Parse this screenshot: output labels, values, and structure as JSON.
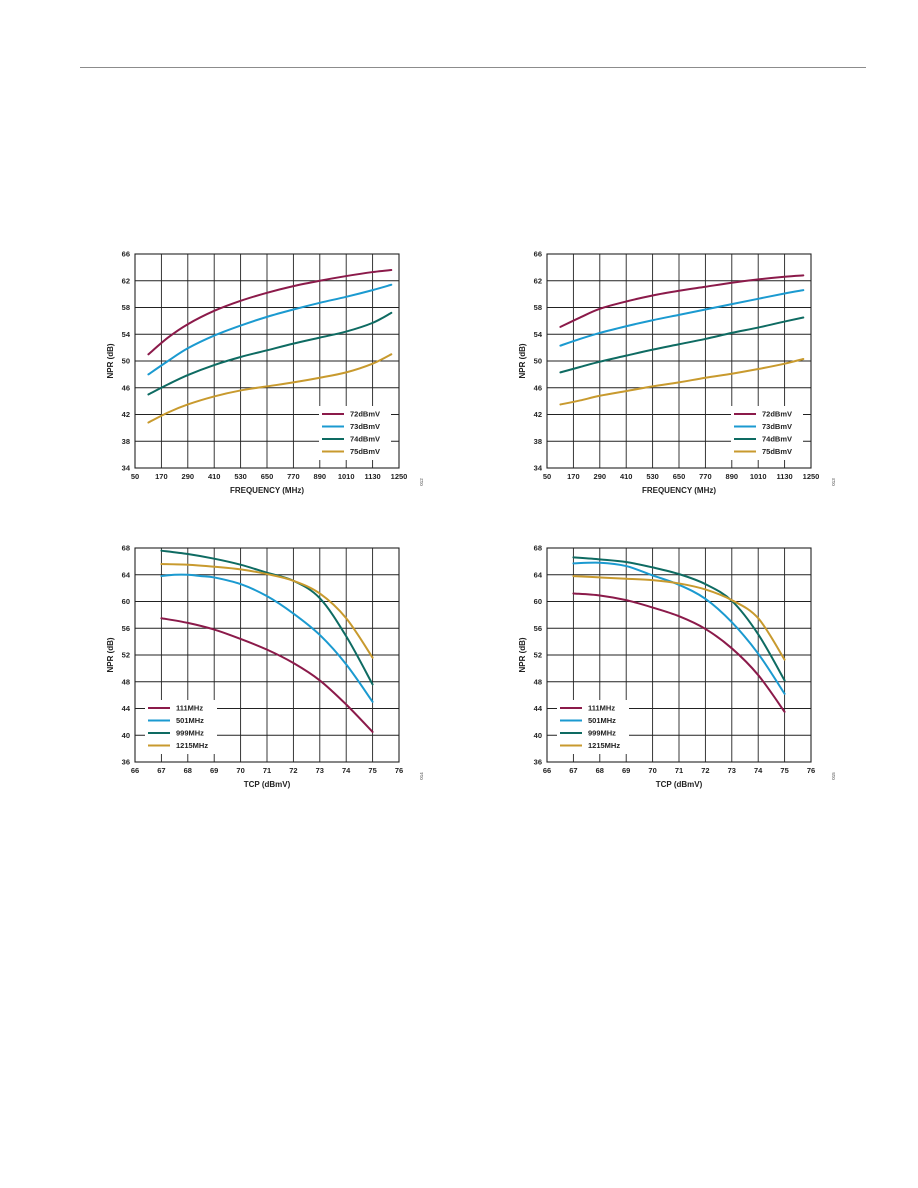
{
  "page": {
    "figure_ids": [
      "012",
      "013",
      "014",
      "015"
    ]
  },
  "chart_data": [
    {
      "type": "line",
      "xlabel": "FREQUENCY (MHz)",
      "ylabel": "NPR (dB)",
      "xlim": [
        50,
        1250
      ],
      "ylim": [
        34,
        66
      ],
      "xticks": [
        50,
        170,
        290,
        410,
        530,
        650,
        770,
        890,
        1010,
        1130,
        1250
      ],
      "yticks": [
        34,
        38,
        42,
        46,
        50,
        54,
        58,
        62,
        66
      ],
      "legend_position": "bottom-right",
      "series": [
        {
          "name": "72dBmV",
          "color": "#8b1a4a",
          "x": [
            111,
            200,
            290,
            410,
            530,
            650,
            770,
            890,
            1010,
            1130,
            1215
          ],
          "y": [
            51.0,
            53.5,
            55.5,
            57.5,
            59.0,
            60.2,
            61.2,
            62.0,
            62.7,
            63.3,
            63.6
          ]
        },
        {
          "name": "73dBmV",
          "color": "#1b9ad0",
          "x": [
            111,
            200,
            290,
            410,
            530,
            650,
            770,
            890,
            1010,
            1130,
            1215
          ],
          "y": [
            48.0,
            50.0,
            51.9,
            53.8,
            55.3,
            56.6,
            57.7,
            58.7,
            59.6,
            60.6,
            61.4
          ]
        },
        {
          "name": "74dBmV",
          "color": "#0e6b62",
          "x": [
            111,
            200,
            290,
            410,
            530,
            650,
            770,
            890,
            1010,
            1130,
            1215
          ],
          "y": [
            45.0,
            46.5,
            47.9,
            49.4,
            50.6,
            51.6,
            52.6,
            53.5,
            54.4,
            55.7,
            57.2
          ]
        },
        {
          "name": "75dBmV",
          "color": "#c89a2e",
          "x": [
            111,
            200,
            290,
            410,
            530,
            650,
            770,
            890,
            1010,
            1130,
            1215
          ],
          "y": [
            40.8,
            42.3,
            43.5,
            44.7,
            45.6,
            46.2,
            46.8,
            47.5,
            48.3,
            49.6,
            51.0
          ]
        }
      ]
    },
    {
      "type": "line",
      "xlabel": "FREQUENCY (MHz)",
      "ylabel": "NPR (dB)",
      "xlim": [
        50,
        1250
      ],
      "ylim": [
        34,
        66
      ],
      "xticks": [
        50,
        170,
        290,
        410,
        530,
        650,
        770,
        890,
        1010,
        1130,
        1250
      ],
      "yticks": [
        34,
        38,
        42,
        46,
        50,
        54,
        58,
        62,
        66
      ],
      "legend_position": "bottom-right",
      "series": [
        {
          "name": "72dBmV",
          "color": "#8b1a4a",
          "x": [
            111,
            200,
            290,
            410,
            530,
            650,
            770,
            890,
            1010,
            1130,
            1215
          ],
          "y": [
            55.1,
            56.5,
            57.8,
            58.9,
            59.8,
            60.5,
            61.1,
            61.7,
            62.2,
            62.6,
            62.8
          ]
        },
        {
          "name": "73dBmV",
          "color": "#1b9ad0",
          "x": [
            111,
            200,
            290,
            410,
            530,
            650,
            770,
            890,
            1010,
            1130,
            1215
          ],
          "y": [
            52.3,
            53.3,
            54.2,
            55.2,
            56.1,
            56.9,
            57.7,
            58.5,
            59.3,
            60.1,
            60.6
          ]
        },
        {
          "name": "74dBmV",
          "color": "#0e6b62",
          "x": [
            111,
            200,
            290,
            410,
            530,
            650,
            770,
            890,
            1010,
            1130,
            1215
          ],
          "y": [
            48.3,
            49.1,
            49.9,
            50.8,
            51.7,
            52.5,
            53.3,
            54.2,
            55.0,
            55.9,
            56.5
          ]
        },
        {
          "name": "75dBmV",
          "color": "#c89a2e",
          "x": [
            111,
            200,
            290,
            410,
            530,
            650,
            770,
            890,
            1010,
            1130,
            1215
          ],
          "y": [
            43.5,
            44.1,
            44.8,
            45.5,
            46.2,
            46.8,
            47.5,
            48.1,
            48.8,
            49.6,
            50.3
          ]
        }
      ]
    },
    {
      "type": "line",
      "xlabel": "TCP (dBmV)",
      "ylabel": "NPR (dB)",
      "xlim": [
        66,
        76
      ],
      "ylim": [
        36,
        68
      ],
      "xticks": [
        66,
        67,
        68,
        69,
        70,
        71,
        72,
        73,
        74,
        75,
        76
      ],
      "yticks": [
        36,
        40,
        44,
        48,
        52,
        56,
        60,
        64,
        68
      ],
      "legend_position": "bottom-left",
      "series": [
        {
          "name": "111MHz",
          "color": "#8b1a4a",
          "x": [
            67,
            68,
            69,
            70,
            71,
            72,
            73,
            74,
            75
          ],
          "y": [
            57.5,
            56.8,
            55.8,
            54.4,
            52.8,
            50.8,
            48.2,
            44.6,
            40.5
          ]
        },
        {
          "name": "501MHz",
          "color": "#1b9ad0",
          "x": [
            67,
            67.5,
            68,
            68.5,
            69,
            70,
            71,
            72,
            73,
            74,
            75
          ],
          "y": [
            63.8,
            64.0,
            64.0,
            63.8,
            63.6,
            62.6,
            60.8,
            58.2,
            55.0,
            50.6,
            45.0
          ]
        },
        {
          "name": "999MHz",
          "color": "#0e6b62",
          "x": [
            67,
            68,
            69,
            70,
            71,
            72,
            73,
            74,
            75
          ],
          "y": [
            67.6,
            67.1,
            66.4,
            65.5,
            64.3,
            63.1,
            60.5,
            54.8,
            47.6
          ]
        },
        {
          "name": "1215MHz",
          "color": "#c89a2e",
          "x": [
            67,
            68,
            69,
            70,
            71,
            72,
            73,
            74,
            75
          ],
          "y": [
            65.6,
            65.5,
            65.2,
            64.8,
            64.1,
            63.1,
            61.2,
            57.5,
            51.6
          ]
        }
      ]
    },
    {
      "type": "line",
      "xlabel": "TCP (dBmV)",
      "ylabel": "NPR (dB)",
      "xlim": [
        66,
        76
      ],
      "ylim": [
        36,
        68
      ],
      "xticks": [
        66,
        67,
        68,
        69,
        70,
        71,
        72,
        73,
        74,
        75,
        76
      ],
      "yticks": [
        36,
        40,
        44,
        48,
        52,
        56,
        60,
        64,
        68
      ],
      "legend_position": "bottom-left",
      "series": [
        {
          "name": "111MHz",
          "color": "#8b1a4a",
          "x": [
            67,
            68,
            69,
            70,
            71,
            72,
            73,
            74,
            75
          ],
          "y": [
            61.2,
            60.9,
            60.2,
            59.1,
            57.8,
            55.9,
            53.0,
            49.0,
            43.5
          ]
        },
        {
          "name": "501MHz",
          "color": "#1b9ad0",
          "x": [
            67,
            68,
            69,
            70,
            71,
            72,
            73,
            74,
            75
          ],
          "y": [
            65.7,
            65.8,
            65.3,
            63.9,
            62.5,
            60.4,
            56.9,
            52.2,
            46.2
          ]
        },
        {
          "name": "999MHz",
          "color": "#0e6b62",
          "x": [
            67,
            68,
            69,
            70,
            71,
            72,
            73,
            74,
            75
          ],
          "y": [
            66.6,
            66.3,
            65.9,
            65.1,
            64.1,
            62.6,
            60.1,
            55.1,
            48.2
          ]
        },
        {
          "name": "1215MHz",
          "color": "#c89a2e",
          "x": [
            67,
            68,
            69,
            70,
            71,
            72,
            73,
            74,
            75
          ],
          "y": [
            63.8,
            63.6,
            63.4,
            63.2,
            62.7,
            61.8,
            60.2,
            57.5,
            51.3
          ]
        }
      ]
    }
  ]
}
